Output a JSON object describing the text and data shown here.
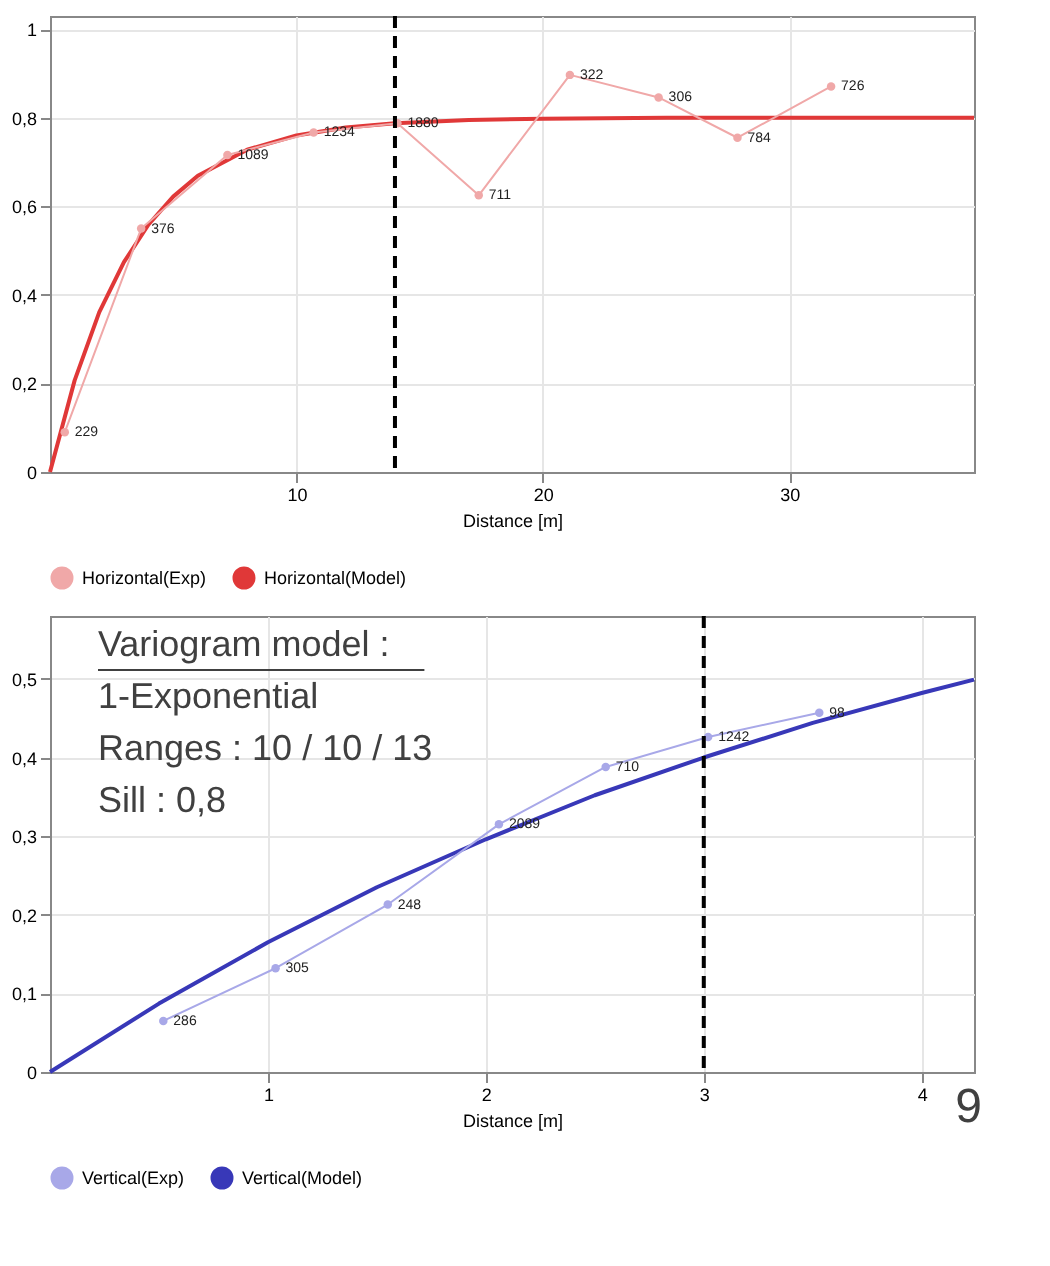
{
  "chart_data": [
    {
      "type": "line",
      "xlabel": "Distance [m]",
      "xlim": [
        0,
        37.5
      ],
      "ylim": [
        0,
        1.03
      ],
      "xticks": [
        10,
        20,
        30
      ],
      "yticks": [
        0,
        {
          "value": 0.2,
          "label": "0,2"
        },
        {
          "value": 0.4,
          "label": "0,4"
        },
        {
          "value": 0.6,
          "label": "0,6"
        },
        {
          "value": 0.8,
          "label": "0,8"
        },
        1
      ],
      "grid": true,
      "legend": "bottom",
      "series": [
        {
          "name": "Horizontal(Exp)",
          "color": "#f0a8a8",
          "marker": "circle",
          "x": [
            0.6,
            3.7,
            7.2,
            10.7,
            14.1,
            17.4,
            21.1,
            24.7,
            27.9,
            31.7
          ],
          "values": [
            0.09,
            0.55,
            0.716,
            0.767,
            0.788,
            0.625,
            0.897,
            0.846,
            0.755,
            0.871
          ]
        },
        {
          "name": "Horizontal(Model)",
          "color": "#e03838",
          "marker": "none",
          "x": [
            0,
            1,
            2,
            3,
            4,
            5,
            6,
            8,
            10,
            12,
            14,
            17,
            20,
            25,
            30,
            37.5
          ],
          "values": [
            0,
            0.207,
            0.361,
            0.474,
            0.559,
            0.622,
            0.669,
            0.728,
            0.76,
            0.778,
            0.788,
            0.795,
            0.798,
            0.8,
            0.8,
            0.8
          ]
        }
      ],
      "ref_lines": [
        {
          "axis": "x",
          "value": 14,
          "color": "#000000",
          "line_style": "dashed"
        }
      ],
      "annotations": [
        {
          "text": "229",
          "x": 0.6,
          "y": 0.09
        },
        {
          "text": "376",
          "x": 3.7,
          "y": 0.55
        },
        {
          "text": "1089",
          "x": 7.2,
          "y": 0.716
        },
        {
          "text": "1234",
          "x": 10.7,
          "y": 0.767
        },
        {
          "text": "1880",
          "x": 14.1,
          "y": 0.788
        },
        {
          "text": "711",
          "x": 17.4,
          "y": 0.625
        },
        {
          "text": "322",
          "x": 21.1,
          "y": 0.897
        },
        {
          "text": "306",
          "x": 24.7,
          "y": 0.846
        },
        {
          "text": "784",
          "x": 27.9,
          "y": 0.755
        },
        {
          "text": "726",
          "x": 31.7,
          "y": 0.871
        }
      ]
    },
    {
      "type": "line",
      "xlabel": "Distance [m]",
      "xlim": [
        0,
        4.24
      ],
      "ylim": [
        0,
        0.58
      ],
      "xticks": [
        1,
        2,
        3,
        4
      ],
      "yticks": [
        0,
        {
          "value": 0.1,
          "label": "0,1"
        },
        {
          "value": 0.2,
          "label": "0,2"
        },
        {
          "value": 0.3,
          "label": "0,3"
        },
        {
          "value": 0.4,
          "label": "0,4"
        },
        {
          "value": 0.5,
          "label": "0,5"
        }
      ],
      "grid": true,
      "legend": "bottom",
      "series": [
        {
          "name": "Vertical(Exp)",
          "color": "#a8a8e8",
          "marker": "circle",
          "x": [
            0.52,
            1.035,
            1.55,
            2.06,
            2.55,
            3.02,
            3.53
          ],
          "values": [
            0.065,
            0.132,
            0.213,
            0.315,
            0.388,
            0.426,
            0.457
          ]
        },
        {
          "name": "Vertical(Model)",
          "color": "#3838b8",
          "marker": "none",
          "x": [
            0,
            0.5,
            1,
            1.5,
            2,
            2.5,
            3,
            3.5,
            4,
            4.24
          ],
          "values": [
            0,
            0.087,
            0.165,
            0.235,
            0.296,
            0.352,
            0.4,
            0.444,
            0.482,
            0.499
          ]
        }
      ],
      "ref_lines": [
        {
          "axis": "x",
          "value": 3,
          "color": "#000000",
          "line_style": "dashed"
        }
      ],
      "annotations": [
        {
          "text": "286",
          "x": 0.52,
          "y": 0.065
        },
        {
          "text": "305",
          "x": 1.035,
          "y": 0.132
        },
        {
          "text": "248",
          "x": 1.55,
          "y": 0.213
        },
        {
          "text": "2089",
          "x": 2.06,
          "y": 0.315
        },
        {
          "text": "710",
          "x": 2.55,
          "y": 0.388
        },
        {
          "text": "1242",
          "x": 3.02,
          "y": 0.426
        },
        {
          "text": "98",
          "x": 3.53,
          "y": 0.457
        },
        "Variogram model :",
        "1-Exponential",
        "Ranges : 10 / 10 / 13",
        "Sill : 0,8",
        "9"
      ]
    }
  ]
}
